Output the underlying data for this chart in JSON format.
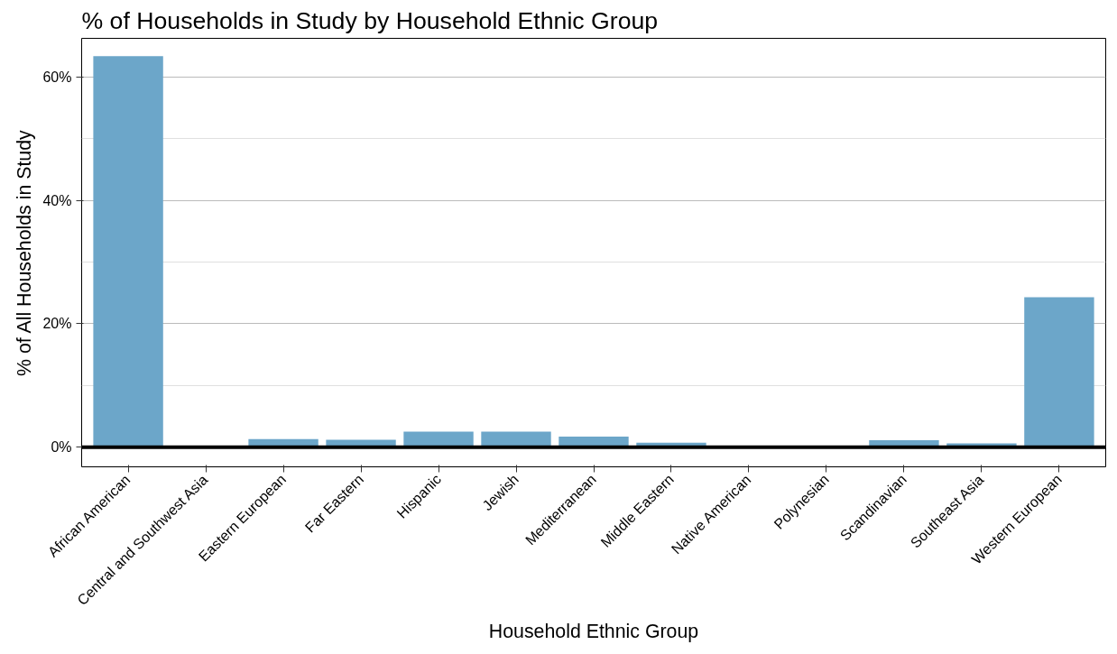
{
  "chart_data": {
    "type": "bar",
    "title": "% of Households in Study by Household Ethnic Group",
    "xlabel": "Household Ethnic Group",
    "ylabel": "% of All Households in Study",
    "categories": [
      "African American",
      "Central and Southwest Asia",
      "Eastern European",
      "Far Eastern",
      "Hispanic",
      "Jewish",
      "Mediterranean",
      "Middle Eastern",
      "Native American",
      "Polynesian",
      "Scandinavian",
      "Southeast Asia",
      "Western European"
    ],
    "values": [
      63.4,
      0,
      1.3,
      1.2,
      2.5,
      2.5,
      1.7,
      0.7,
      0,
      0,
      1.1,
      0.6,
      24.3
    ],
    "color": "#6ca6c9",
    "ylim": [
      -3.2,
      66.3
    ],
    "yticks": [
      {
        "value": 0,
        "label": "0%"
      },
      {
        "value": 10,
        "label": null
      },
      {
        "value": 20,
        "label": "20%"
      },
      {
        "value": 30,
        "label": null
      },
      {
        "value": 40,
        "label": "40%"
      },
      {
        "value": 50,
        "label": null
      },
      {
        "value": 60,
        "label": "60%"
      }
    ],
    "ref_lines": [
      {
        "axis": "y",
        "value": 0,
        "label": null,
        "color": "#000000"
      }
    ],
    "grid": "y"
  }
}
